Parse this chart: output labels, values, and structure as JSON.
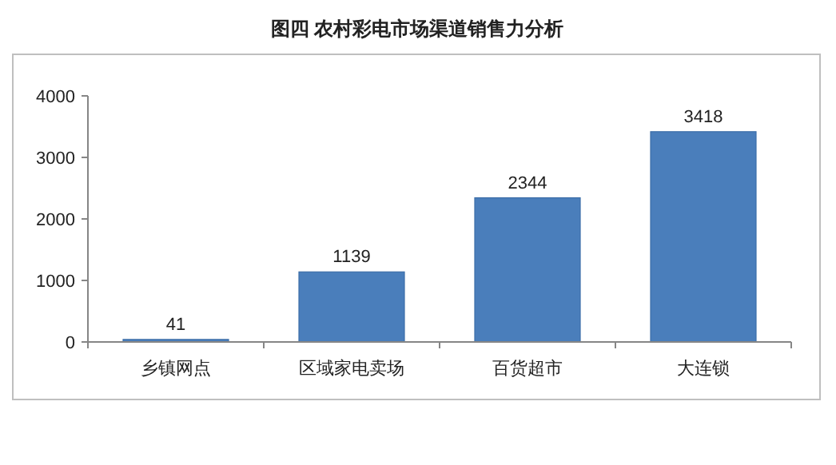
{
  "chart_data": {
    "type": "bar",
    "title": "图四  农村彩电市场渠道销售力分析",
    "categories": [
      "乡镇网点",
      "区域家电卖场",
      "百货超市",
      "大连锁"
    ],
    "values": [
      41,
      1139,
      2344,
      3418
    ],
    "color": "#4a7ebb",
    "ylim": [
      0,
      4000
    ],
    "yticks": [
      0,
      1000,
      2000,
      3000,
      4000
    ],
    "data_labels": true
  }
}
